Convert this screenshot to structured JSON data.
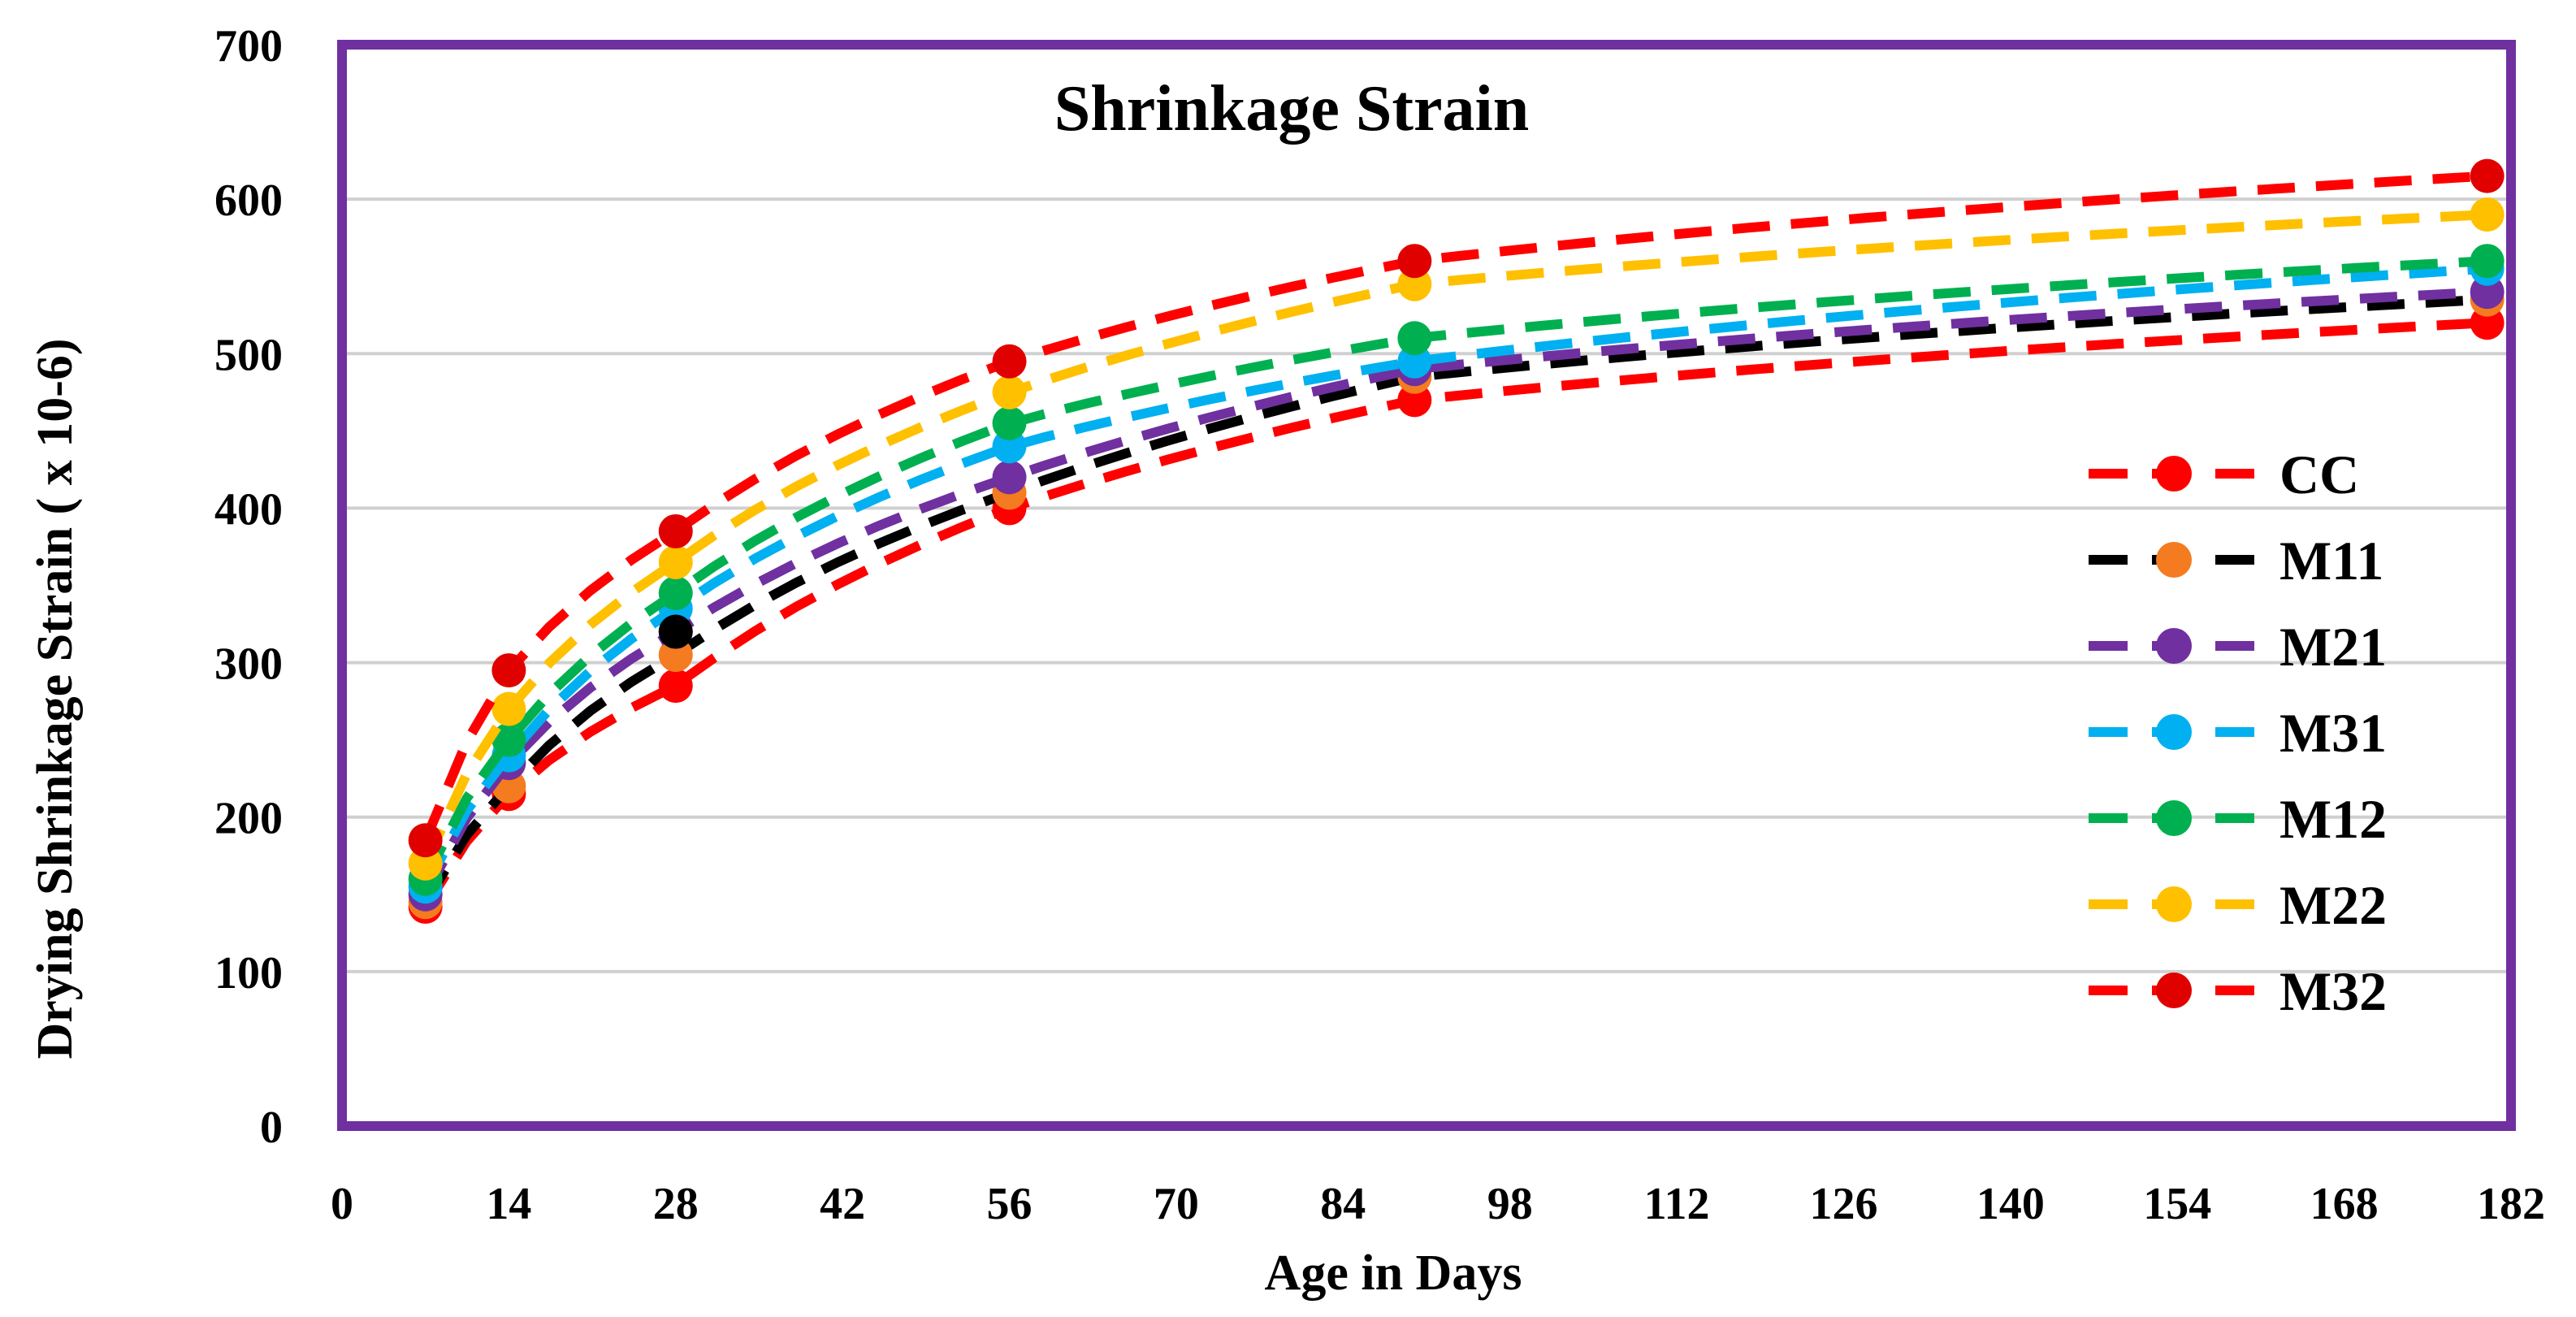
{
  "chart_data": {
    "type": "line",
    "title": "Shrinkage Strain",
    "xlabel": "Age in Days",
    "ylabel": "Drying Shrinkage Strain ( x 10-6)",
    "xlim": [
      0,
      182
    ],
    "ylim": [
      0,
      700
    ],
    "xticks": [
      0,
      14,
      28,
      42,
      56,
      70,
      84,
      98,
      112,
      126,
      140,
      154,
      168,
      182
    ],
    "yticks": [
      0,
      100,
      200,
      300,
      400,
      500,
      600,
      700
    ],
    "grid": "horizontal",
    "legend": "right",
    "x": [
      7,
      14,
      28,
      56,
      90,
      180
    ],
    "series": [
      {
        "name": "CC",
        "line_color": "#ff0000",
        "marker_color": "#ff0000",
        "values": [
          142,
          215,
          285,
          400,
          470,
          520
        ]
      },
      {
        "name": "M11",
        "line_color": "#000000",
        "marker_color": "#f47b20",
        "values": [
          145,
          220,
          305,
          410,
          485,
          535
        ]
      },
      {
        "name": "M21",
        "line_color": "#7030a0",
        "marker_color": "#7030a0",
        "values": [
          150,
          235,
          320,
          420,
          490,
          540
        ]
      },
      {
        "name": "M31",
        "line_color": "#00b0f0",
        "marker_color": "#00b0f0",
        "values": [
          155,
          240,
          335,
          440,
          495,
          555
        ]
      },
      {
        "name": "M12",
        "line_color": "#00b050",
        "marker_color": "#00b050",
        "values": [
          160,
          250,
          345,
          455,
          510,
          560
        ]
      },
      {
        "name": "M22",
        "line_color": "#ffc000",
        "marker_color": "#ffc000",
        "values": [
          170,
          270,
          365,
          475,
          545,
          590
        ]
      },
      {
        "name": "M32",
        "line_color": "#ff0000",
        "marker_color": "#e00000",
        "values": [
          185,
          295,
          385,
          495,
          560,
          615
        ]
      }
    ],
    "extra_points": [
      {
        "x": 28,
        "y": 320,
        "color": "#000000"
      }
    ],
    "frame_color": "#7030a0",
    "grid_color": "#d0d0d0"
  }
}
